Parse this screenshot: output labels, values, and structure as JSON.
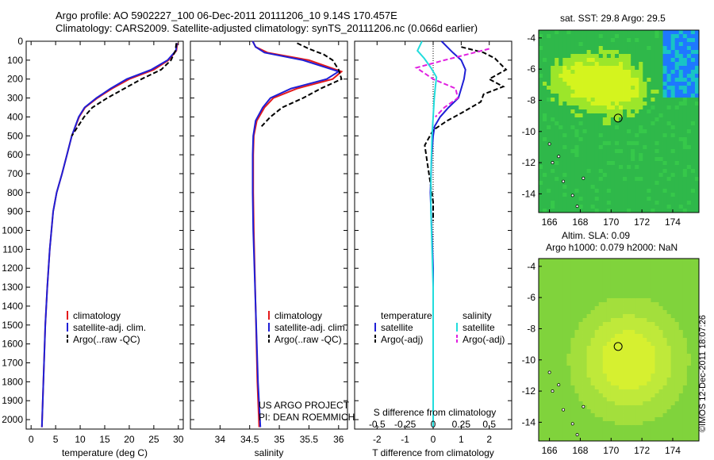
{
  "header": {
    "line1": "Argo profile: AO 5902227_100 06-Dec-2011 20111206_10 9.14S 170.457E",
    "line2": "Climatology: CARS2009. Satellite-adjusted climatology: synTS_20111206.nc (0.066d earlier)"
  },
  "right": {
    "sst_title": "sat. SST: 29.8 Argo: 29.5",
    "sla_title1": "Altim. SLA: 0.09",
    "sla_title2": "Argo h1000: 0.079 h2000: NaN",
    "stamp": "©IMOS 12-Dec-2011 18:07:26"
  },
  "colors": {
    "climatology": "#e41a1c",
    "satellite": "#1f1fd6",
    "argo": "#000000",
    "sat_s": "#22dddd",
    "argo_s": "#e020e0"
  },
  "chart_data": [
    {
      "type": "line",
      "xlabel": "temperature (deg C)",
      "xlim": [
        -1,
        31
      ],
      "xticks": [
        0,
        5,
        10,
        15,
        20,
        25,
        30
      ],
      "ylim": [
        0,
        2050
      ],
      "yticks": [
        0,
        100,
        200,
        300,
        400,
        500,
        600,
        700,
        800,
        900,
        1000,
        1100,
        1200,
        1300,
        1400,
        1500,
        1600,
        1700,
        1800,
        1900,
        2000
      ],
      "legend": [
        "climatology",
        "satellite-adj. clim.",
        "Argo(..raw -QC)"
      ],
      "series": [
        {
          "name": "climatology",
          "style": "solid",
          "color": "#e41a1c",
          "x": [
            29.8,
            29.6,
            28.0,
            25.0,
            20.0,
            16.5,
            13.5,
            11.0,
            9.8,
            8.3,
            7.3,
            6.3,
            5.2,
            4.5,
            3.8,
            3.3,
            2.9,
            2.5,
            2.2
          ],
          "y": [
            10,
            50,
            100,
            150,
            200,
            250,
            300,
            350,
            400,
            500,
            600,
            700,
            800,
            900,
            1100,
            1300,
            1500,
            1800,
            2040
          ]
        },
        {
          "name": "satellite-adj. clim.",
          "style": "solid",
          "color": "#1f1fd6",
          "x": [
            29.7,
            29.5,
            27.8,
            24.5,
            19.5,
            16.2,
            13.3,
            10.9,
            9.7,
            8.3,
            7.3,
            6.3,
            5.2,
            4.5,
            3.8,
            3.3,
            2.9,
            2.5,
            2.2
          ],
          "y": [
            10,
            50,
            100,
            150,
            200,
            250,
            300,
            350,
            400,
            500,
            600,
            700,
            800,
            900,
            1100,
            1300,
            1500,
            1800,
            2040
          ]
        },
        {
          "name": "Argo(..raw -QC)",
          "style": "dashed",
          "color": "#000000",
          "x": [
            29.6,
            29.4,
            28.5,
            26.5,
            22.5,
            19.0,
            15.5,
            12.5,
            10.8,
            8.3
          ],
          "y": [
            10,
            50,
            100,
            150,
            200,
            250,
            300,
            350,
            400,
            500
          ]
        }
      ]
    },
    {
      "type": "line",
      "xlabel": "salinity",
      "xlim": [
        33.5,
        36.15
      ],
      "xticks": [
        34,
        34.5,
        35,
        35.5,
        36
      ],
      "ylim": [
        0,
        2050
      ],
      "legend": [
        "climatology",
        "satellite-adj. clim.",
        "Argo(..raw -QC)"
      ],
      "annotation": [
        "US ARGO PROJECT",
        "PI: DEAN ROEMMICH"
      ],
      "series": [
        {
          "name": "climatology",
          "style": "solid",
          "color": "#e41a1c",
          "x": [
            34.55,
            34.6,
            34.8,
            35.5,
            36.05,
            35.9,
            35.3,
            34.9,
            34.75,
            34.62,
            34.57,
            34.56,
            34.56,
            34.57,
            34.6,
            34.63,
            34.66
          ],
          "y": [
            0,
            30,
            60,
            100,
            160,
            200,
            250,
            300,
            350,
            420,
            500,
            600,
            800,
            1000,
            1400,
            1800,
            2040
          ]
        },
        {
          "name": "satellite-adj. clim.",
          "style": "solid",
          "color": "#1f1fd6",
          "x": [
            34.55,
            34.6,
            34.75,
            35.4,
            36.0,
            35.8,
            35.2,
            34.85,
            34.72,
            34.6,
            34.56,
            34.55,
            34.55,
            34.56,
            34.6,
            34.64,
            34.68
          ],
          "y": [
            0,
            30,
            60,
            100,
            160,
            200,
            250,
            300,
            350,
            420,
            500,
            600,
            800,
            1000,
            1400,
            1800,
            2040
          ]
        },
        {
          "name": "Argo(..raw -QC)",
          "style": "dashed",
          "color": "#000000",
          "x": [
            35.3,
            35.5,
            35.75,
            35.9,
            36.0,
            36.05,
            35.7,
            35.4,
            35.05,
            34.85,
            34.7
          ],
          "y": [
            10,
            40,
            70,
            100,
            150,
            200,
            250,
            300,
            350,
            400,
            450
          ]
        }
      ]
    },
    {
      "type": "line",
      "xlabel_bottom": "T difference from climatology",
      "xlabel_top": "S difference from climatology",
      "xlim": [
        -2.8,
        2.8
      ],
      "xticks": [
        -2,
        -1,
        0,
        1,
        2
      ],
      "xticks_s": [
        -0.5,
        -0.25,
        0,
        0.25,
        0.5
      ],
      "xtick_labels_s": [
        "-0.5",
        "-0.25",
        "0",
        "0.25",
        "0.5"
      ],
      "ylim": [
        0,
        2050
      ],
      "legend_headers": [
        "temperature",
        "salinity"
      ],
      "legend": [
        "satellite",
        "Argo(-adj)",
        "satellite",
        "Argo(-adj)"
      ],
      "series": [
        {
          "name": "satellite",
          "style": "solid",
          "color": "#1f1fd6",
          "x": [
            0.3,
            0.5,
            0.7,
            1.0,
            1.15,
            1.1,
            1.0,
            0.9,
            0.55,
            0.25,
            0.05,
            0.0,
            -0.05,
            -0.1,
            -0.05,
            0.0,
            0.0,
            0.0,
            0.0
          ],
          "y": [
            0,
            30,
            60,
            100,
            150,
            200,
            250,
            300,
            350,
            400,
            450,
            500,
            600,
            800,
            1000,
            1200,
            1400,
            1800,
            2040
          ]
        },
        {
          "name": "Argo(-adj)",
          "style": "dashed",
          "color": "#000000",
          "x": [
            1.0,
            1.8,
            2.2,
            2.6,
            2.0,
            2.5,
            1.8,
            1.7,
            1.0,
            0.5,
            0.0,
            -0.3,
            -0.2,
            -0.1,
            0.0,
            0.0
          ],
          "y": [
            30,
            60,
            90,
            150,
            200,
            240,
            280,
            320,
            380,
            420,
            470,
            550,
            650,
            750,
            850,
            950
          ]
        },
        {
          "name": "satellite",
          "style": "solid",
          "color": "#22dddd",
          "x": [
            -0.1,
            -0.14,
            -0.08,
            -0.02,
            0.03,
            0.02,
            0.01,
            0.0,
            -0.01,
            -0.02,
            -0.02,
            -0.01,
            0.0,
            0.0
          ],
          "y": [
            0,
            50,
            90,
            140,
            190,
            240,
            300,
            400,
            500,
            700,
            900,
            1100,
            1300,
            2040
          ]
        },
        {
          "name": "Argo(-adj)",
          "style": "dashed",
          "color": "#e020e0",
          "x": [
            0.5,
            0.3,
            0.1,
            -0.15,
            0.0,
            0.2,
            0.22,
            0.1,
            0.02
          ],
          "y": [
            40,
            70,
            100,
            140,
            200,
            250,
            300,
            350,
            400
          ]
        }
      ]
    },
    {
      "type": "heatmap",
      "title": "sat. SST: 29.8 Argo: 29.5",
      "xlim": [
        165.3,
        175.7
      ],
      "xticks": [
        166,
        168,
        170,
        172,
        174
      ],
      "ylim": [
        -15.2,
        -3.5
      ],
      "yticks": [
        -4,
        -6,
        -8,
        -10,
        -12,
        -14
      ],
      "marker": {
        "lon": 170.457,
        "lat": -9.14
      }
    },
    {
      "type": "heatmap",
      "title": "Altim. SLA: 0.09",
      "xlim": [
        165.3,
        175.7
      ],
      "xticks": [
        166,
        168,
        170,
        172,
        174
      ],
      "ylim": [
        -15.2,
        -3.5
      ],
      "yticks": [
        -4,
        -6,
        -8,
        -10,
        -12,
        -14
      ],
      "marker": {
        "lon": 170.457,
        "lat": -9.14
      }
    }
  ]
}
